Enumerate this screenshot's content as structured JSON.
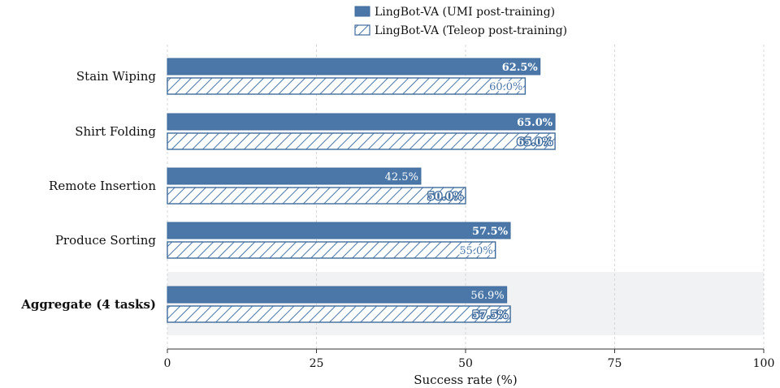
{
  "chart_data": {
    "type": "bar",
    "orientation": "horizontal",
    "categories": [
      "Stain Wiping",
      "Shirt Folding",
      "Remote Insertion",
      "Produce Sorting",
      "Aggregate (4 tasks)"
    ],
    "series": [
      {
        "name": "LingBot-VA (UMI post-training)",
        "style": "solid",
        "values": [
          62.5,
          65.0,
          42.5,
          57.5,
          56.9
        ],
        "labels": [
          "62.5%",
          "65.0%",
          "42.5%",
          "57.5%",
          "56.9%"
        ],
        "bold": [
          true,
          true,
          false,
          true,
          false
        ]
      },
      {
        "name": "LingBot-VA (Teleop post-training)",
        "style": "hatched",
        "values": [
          60.0,
          65.0,
          50.0,
          55.0,
          57.5
        ],
        "labels": [
          "60.0%",
          "65.0%",
          "50.0%",
          "55.0%",
          "57.5%"
        ],
        "bold": [
          false,
          true,
          true,
          false,
          true
        ]
      }
    ],
    "highlight_category": "Aggregate (4 tasks)",
    "xlabel": "Success rate (%)",
    "xlim": [
      0,
      100
    ],
    "xticks": [
      "0",
      "25",
      "50",
      "75",
      "100"
    ],
    "grid": "vertical dashed",
    "legend_position": "top-center",
    "colors": {
      "bar": "#4a77a8",
      "bar_edge": "#3f6b9c",
      "highlight_band": "#f0f2f4",
      "grid": "#d6d6d6"
    }
  }
}
